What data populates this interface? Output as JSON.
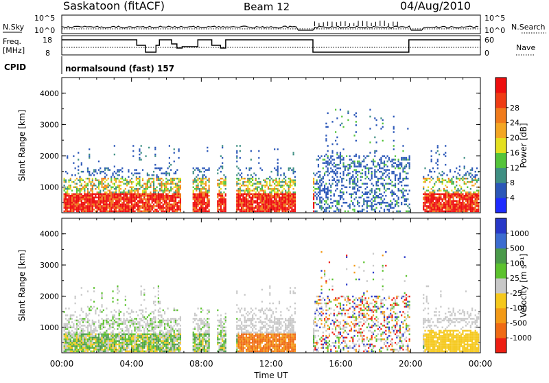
{
  "header": {
    "station": "Saskatoon (fitACF)",
    "beam": "Beam 12",
    "date": "04/Aug/2010"
  },
  "meta_panels": {
    "nsky_label": "N.Sky",
    "nsky_ticks": [
      "10^5",
      "10^0"
    ],
    "nsearch_label": "N.Search",
    "nsearch_ticks": [
      "10^5",
      "10^0"
    ],
    "freq_label_1": "Freq.",
    "freq_label_2": "[MHz]",
    "freq_ticks": [
      "18",
      "8"
    ],
    "nave_label": "Nave",
    "nave_ticks": [
      "60",
      "0"
    ],
    "cpid_label": "CPID",
    "cpid_value": "normalsound (fast) 157"
  },
  "chart_data": [
    {
      "type": "heatmap",
      "name": "power",
      "ylabel": "Slant Range [km]",
      "xlabel": "",
      "x_range_hours": [
        0,
        24
      ],
      "ylim": [
        180,
        4500
      ],
      "yticks": [
        "1000",
        "2000",
        "3000",
        "4000"
      ],
      "colorbar": {
        "label": "Power [dB]",
        "ticks": [
          "4",
          "8",
          "12",
          "16",
          "20",
          "24",
          "28"
        ],
        "colors": [
          "#1e2bff",
          "#2b57b8",
          "#3f8f83",
          "#54c43a",
          "#e4e020",
          "#f3a623",
          "#f07b1c",
          "#ef3c14",
          "#ee0e0e"
        ]
      },
      "echo_intervals_hours": [
        [
          0.1,
          6.8
        ],
        [
          7.5,
          8.4
        ],
        [
          8.9,
          9.4
        ],
        [
          10.0,
          13.4
        ],
        [
          14.4,
          19.9
        ],
        [
          20.7,
          23.9
        ]
      ]
    },
    {
      "type": "heatmap",
      "name": "velocity",
      "ylabel": "Slant Range [km]",
      "xlabel": "Time UT",
      "x_range_hours": [
        0,
        24
      ],
      "ylim": [
        180,
        4500
      ],
      "yticks": [
        "1000",
        "2000",
        "3000",
        "4000"
      ],
      "xticks": [
        "00:00",
        "04:00",
        "08:00",
        "12:00",
        "16:00",
        "20:00",
        "00:00"
      ],
      "colorbar": {
        "label": "Velocity [m s⁻¹]",
        "ticks": [
          "1000",
          "500",
          "100",
          "25",
          "-25",
          "-100",
          "-500",
          "-1000"
        ],
        "colors": [
          "#2838c8",
          "#3c6cd0",
          "#4a9a4a",
          "#5cc22e",
          "#c8c8c8",
          "#f5c81c",
          "#f39a17",
          "#ef6a14",
          "#ee1e12"
        ]
      }
    }
  ]
}
